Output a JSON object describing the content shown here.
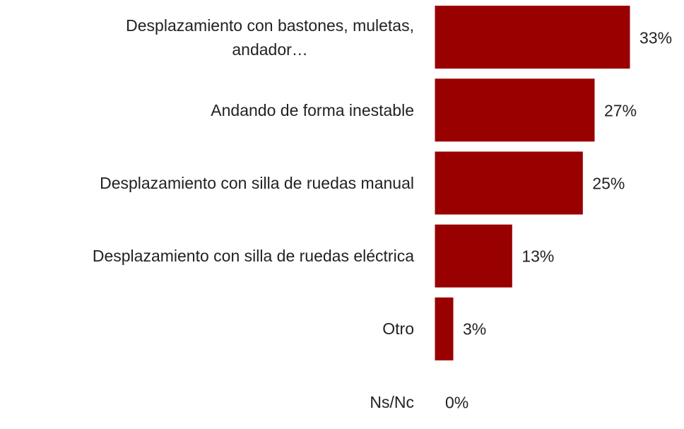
{
  "chart_data": {
    "type": "barh",
    "categories": [
      "Desplazamiento con bastones, muletas,\nandador…",
      "Andando de forma inestable",
      "Desplazamiento con silla de ruedas manual",
      "Desplazamiento con silla de ruedas eléctrica",
      "Otro",
      "Ns/Nc"
    ],
    "values": [
      33,
      27,
      25,
      13,
      3,
      0
    ],
    "value_labels": [
      "33%",
      "27%",
      "25%",
      "13%",
      "3%",
      "0%"
    ],
    "color": "#990000",
    "xlim": [
      0,
      33
    ]
  }
}
